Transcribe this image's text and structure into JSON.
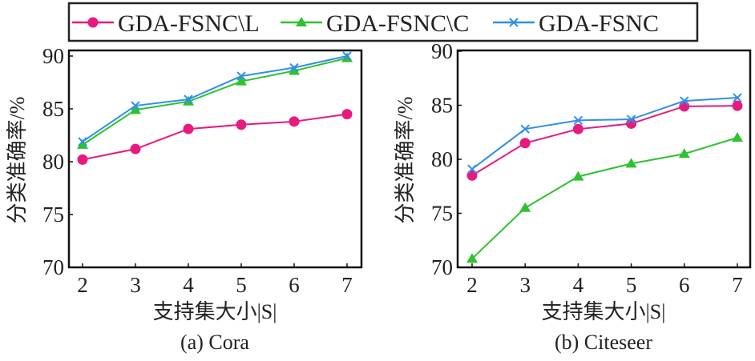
{
  "legend": {
    "placement": "top",
    "entries": [
      "GDA-FSNC\\L",
      "GDA-FSNC\\C",
      "GDA-FSNC"
    ]
  },
  "chart_data": [
    {
      "type": "line",
      "caption": "(a) Cora",
      "xlabel": "支持集大小|S|",
      "ylabel": "分类准确率/%",
      "x": [
        2,
        3,
        4,
        5,
        6,
        7
      ],
      "xlim": [
        2,
        7
      ],
      "ylim": [
        70,
        90
      ],
      "yticks": [
        70,
        75,
        80,
        85,
        90
      ],
      "grid": false,
      "series": [
        {
          "name": "GDA-FSNC\\L",
          "color": "#e8197f",
          "marker": "circle",
          "values": [
            80.2,
            81.2,
            83.1,
            83.5,
            83.8,
            84.5
          ]
        },
        {
          "name": "GDA-FSNC\\C",
          "color": "#2ec22e",
          "marker": "triangle",
          "values": [
            81.6,
            84.9,
            85.7,
            87.6,
            88.6,
            89.8
          ]
        },
        {
          "name": "GDA-FSNC",
          "color": "#2f8fe8",
          "marker": "x",
          "values": [
            81.9,
            85.3,
            85.9,
            88.1,
            88.9,
            90.0
          ]
        }
      ]
    },
    {
      "type": "line",
      "caption": "(b) Citeseer",
      "xlabel": "支持集大小|S|",
      "ylabel": "分类准确率/%",
      "x": [
        2,
        3,
        4,
        5,
        6,
        7
      ],
      "xlim": [
        2,
        7
      ],
      "ylim": [
        70,
        90
      ],
      "yticks": [
        70,
        75,
        80,
        85,
        90
      ],
      "grid": false,
      "series": [
        {
          "name": "GDA-FSNC\\L",
          "color": "#e8197f",
          "marker": "circle",
          "values": [
            78.5,
            81.5,
            82.8,
            83.3,
            84.9,
            84.95
          ]
        },
        {
          "name": "GDA-FSNC\\C",
          "color": "#2ec22e",
          "marker": "triangle",
          "values": [
            70.8,
            75.5,
            78.4,
            79.6,
            80.5,
            82.0
          ]
        },
        {
          "name": "GDA-FSNC",
          "color": "#2f8fe8",
          "marker": "x",
          "values": [
            79.1,
            82.8,
            83.6,
            83.7,
            85.4,
            85.7
          ]
        }
      ]
    }
  ]
}
